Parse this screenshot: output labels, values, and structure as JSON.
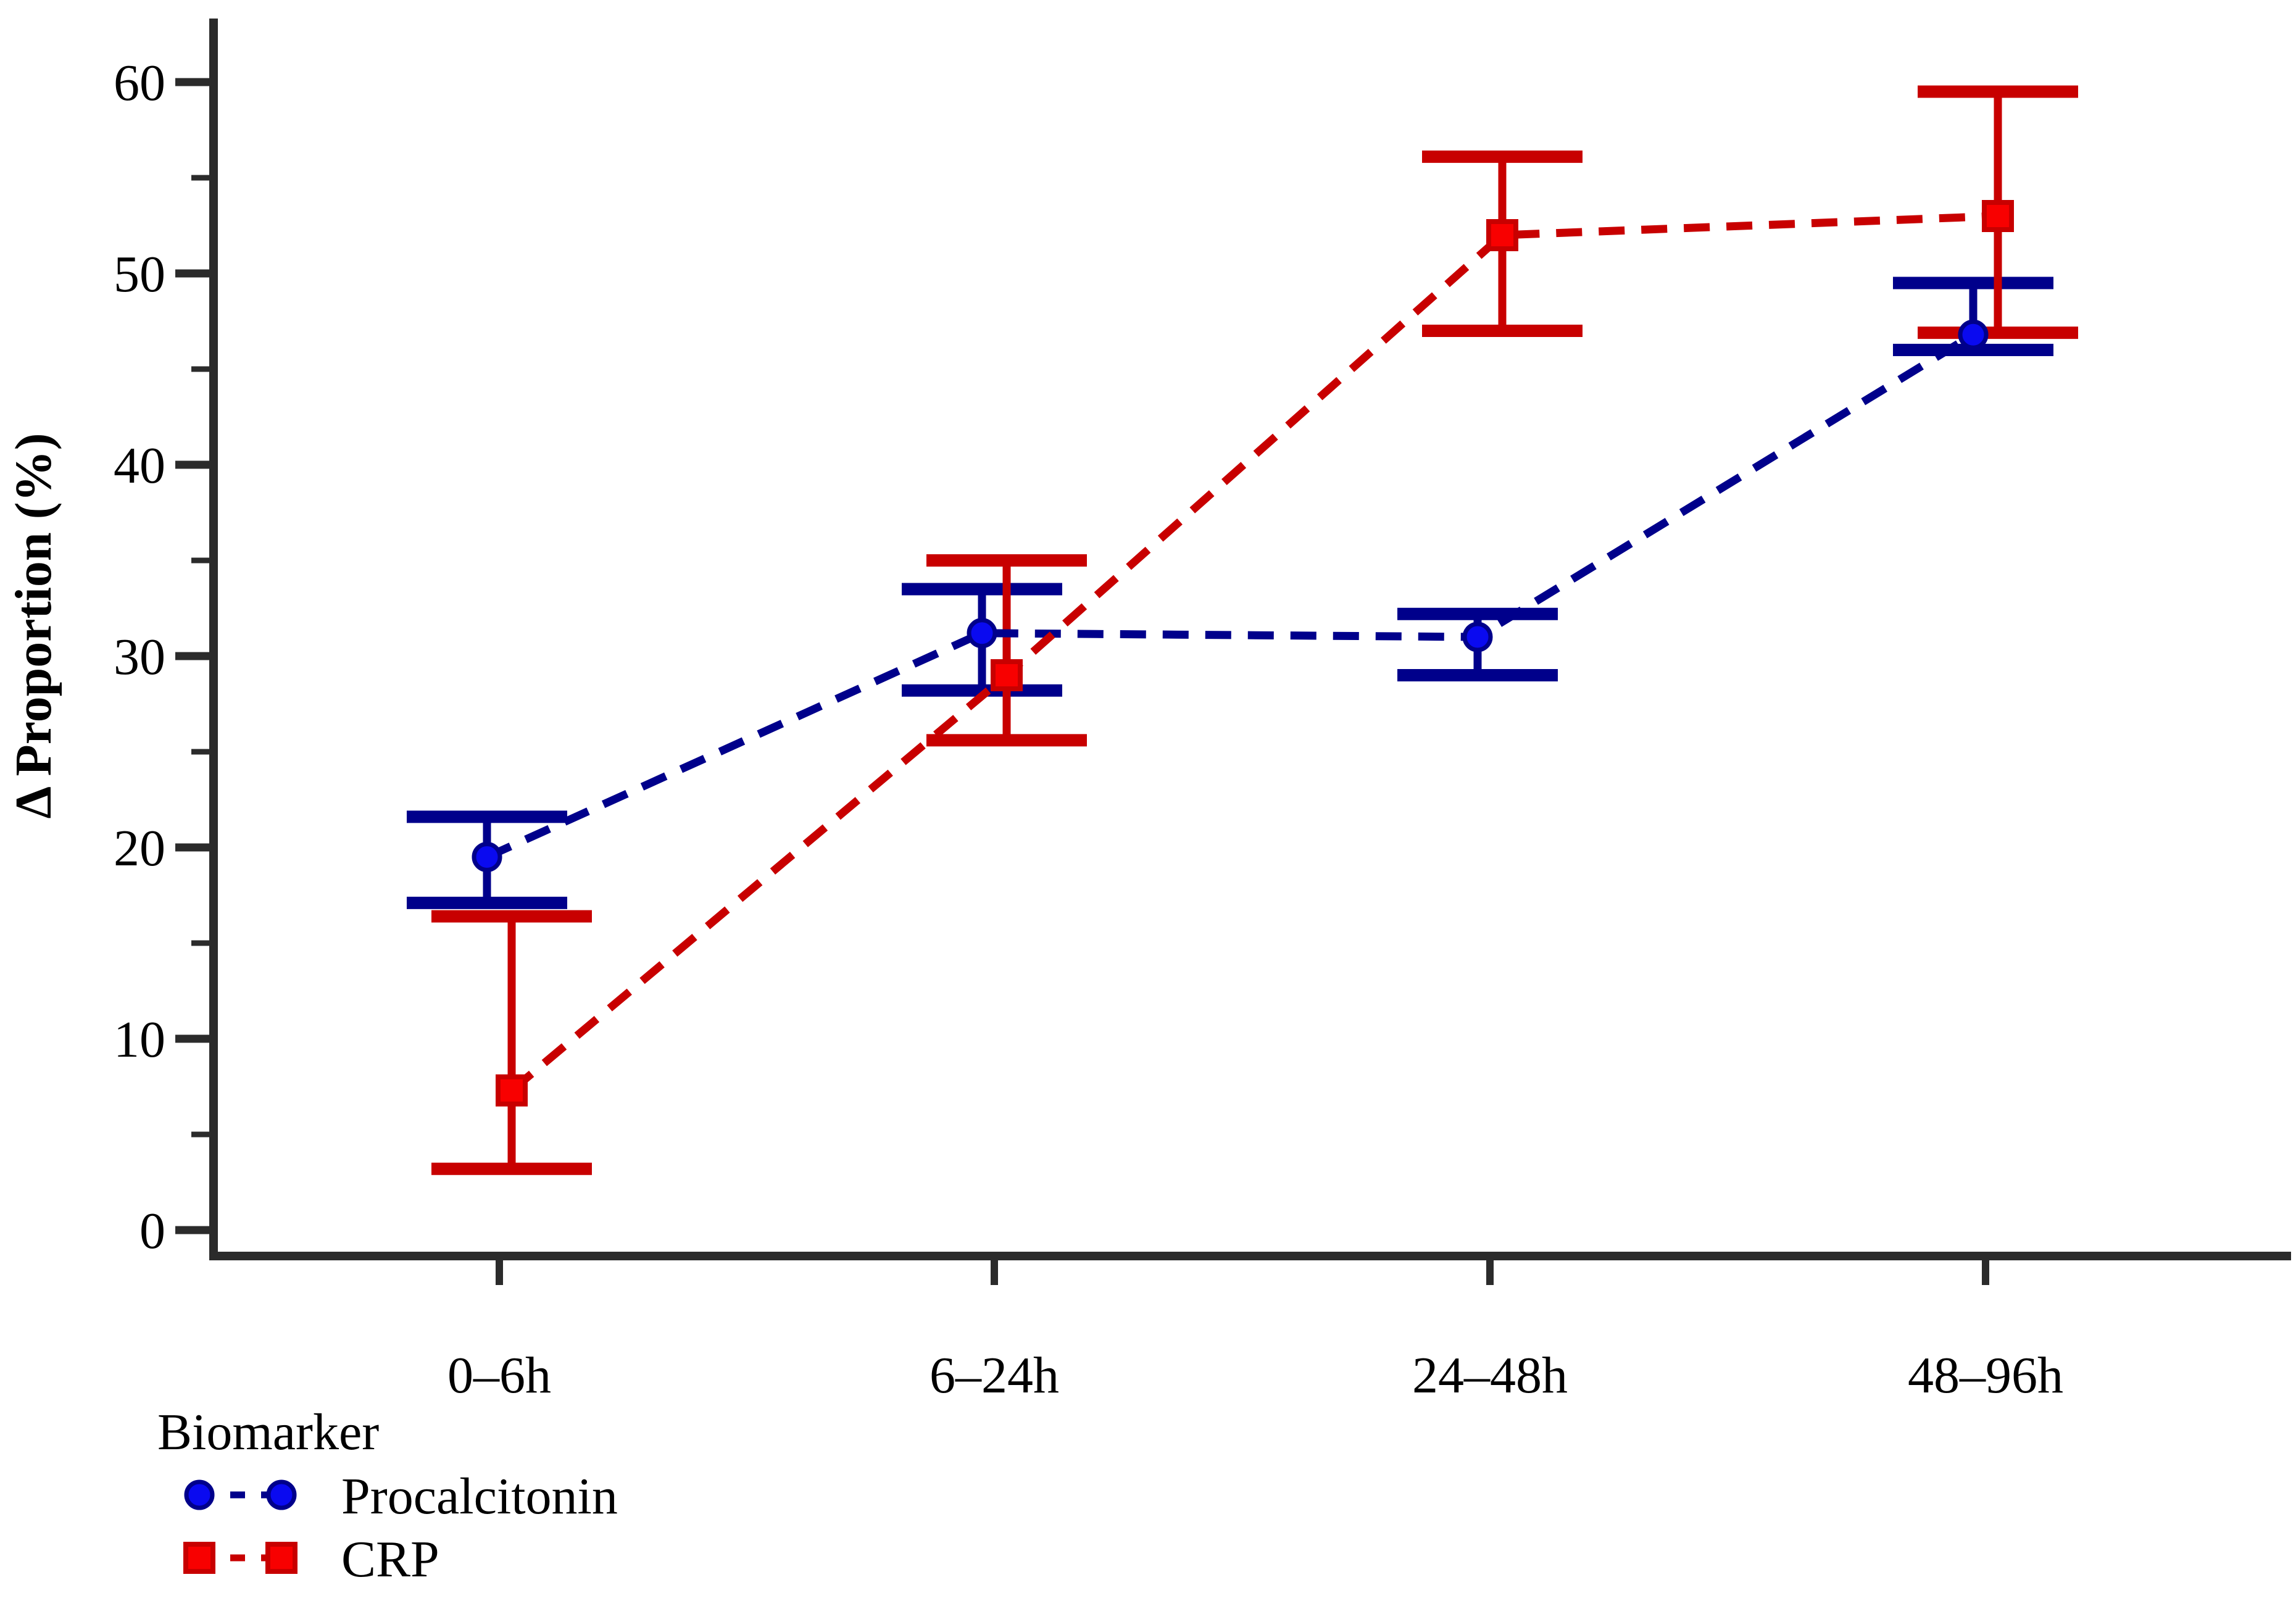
{
  "figure": {
    "background": "#ffffff",
    "axis_color": "#2B2B2B",
    "text_color": "#000000"
  },
  "chart_data": {
    "type": "line",
    "title": "",
    "xlabel": "",
    "ylabel": "Δ Proportion (%)",
    "ylim": [
      0,
      60
    ],
    "grid": false,
    "legend_position": "bottom-left",
    "legend_title": "Biomarker",
    "categories": [
      "0–6h",
      "6–24h",
      "24–48h",
      "48–96h"
    ],
    "ytick_major_values": [
      0,
      10,
      20,
      30,
      40,
      50,
      60
    ],
    "ytick_labels": [
      "0",
      "10",
      "20",
      "30",
      "40",
      "50",
      "60"
    ],
    "ytick_minor_values": [
      5,
      15,
      25,
      35,
      45,
      55
    ],
    "series": [
      {
        "name": "Procalcitonin",
        "marker": "circle",
        "line_color": "#00008B",
        "marker_fill": "#0A0AF0",
        "marker_edge": "#00008B",
        "values": [
          19.5,
          31.2,
          31.0,
          46.8
        ],
        "ci_low": [
          17.1,
          28.2,
          29.0,
          46.0
        ],
        "ci_high": [
          21.6,
          33.5,
          32.2,
          49.5
        ]
      },
      {
        "name": "CRP",
        "marker": "square",
        "line_color": "#C80000",
        "marker_fill": "#F80000",
        "marker_edge": "#C80000",
        "values": [
          7.3,
          29.0,
          52.0,
          53.0
        ],
        "ci_low": [
          3.2,
          25.6,
          47.0,
          46.9
        ],
        "ci_high": [
          16.4,
          35.0,
          56.1,
          59.5
        ]
      }
    ]
  }
}
